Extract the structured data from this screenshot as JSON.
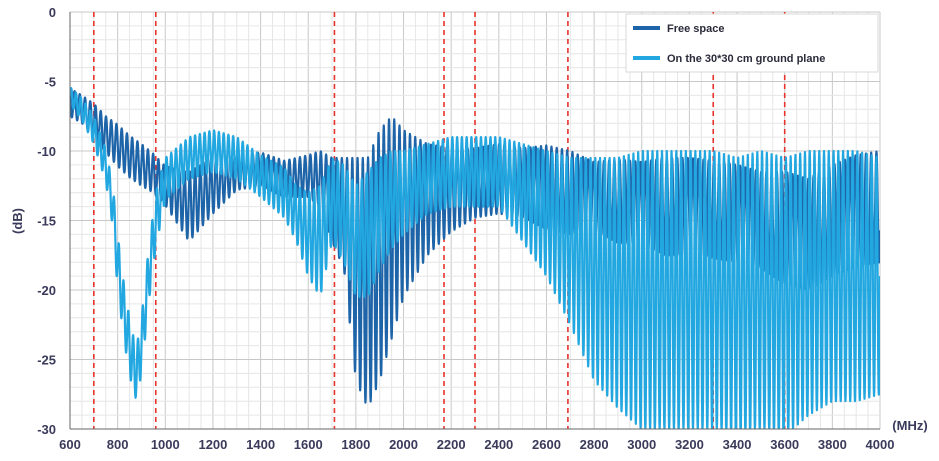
{
  "chart_data": {
    "type": "line",
    "xlabel": "(MHz)",
    "ylabel": "(dB)",
    "xlim": [
      600,
      4000
    ],
    "ylim": [
      -30,
      0
    ],
    "x_ticks": [
      "600",
      "800",
      "1000",
      "1200",
      "1400",
      "1600",
      "1800",
      "2000",
      "2200",
      "2400",
      "2600",
      "2800",
      "3000",
      "3200",
      "3400",
      "3600",
      "3800",
      "4000"
    ],
    "y_ticks": [
      "0",
      "-5",
      "-10",
      "-15",
      "-20",
      "-25",
      "-30"
    ],
    "grid": true,
    "legend_position": "top-right",
    "band_markers_mhz": [
      700,
      960,
      1710,
      2170,
      2300,
      2690,
      3300,
      3600
    ],
    "band_marker_color": "#e8322c",
    "series": [
      {
        "name": "Free space",
        "color": "#1e64a8",
        "x": [
          600,
          650,
          700,
          750,
          800,
          850,
          900,
          950,
          1000,
          1100,
          1200,
          1300,
          1400,
          1500,
          1600,
          1650,
          1700,
          1750,
          1800,
          1850,
          1900,
          1950,
          2000,
          2100,
          2200,
          2300,
          2400,
          2500,
          2600,
          2700,
          2800,
          2900,
          3000,
          3100,
          3200,
          3300,
          3400,
          3500,
          3600,
          3700,
          3800,
          3900,
          4000
        ],
        "y": [
          -6.5,
          -7.0,
          -7.8,
          -8.8,
          -9.6,
          -10.4,
          -11.0,
          -11.6,
          -12.5,
          -14.0,
          -12.5,
          -11.6,
          -11.3,
          -12.0,
          -11.8,
          -12.0,
          -13.5,
          -14.5,
          -18.5,
          -19.5,
          -17.5,
          -15.5,
          -14.5,
          -13.5,
          -12.8,
          -12.3,
          -12.0,
          -12.3,
          -12.6,
          -13.0,
          -13.3,
          -13.6,
          -13.8,
          -14.0,
          -14.0,
          -14.2,
          -14.5,
          -15.0,
          -15.5,
          -16.0,
          -15.0,
          -14.3,
          -14.0
        ],
        "ripple_db": [
          1.0,
          1.0,
          1.2,
          1.3,
          1.5,
          1.5,
          1.5,
          1.4,
          1.4,
          2.5,
          2.0,
          1.2,
          1.2,
          1.3,
          1.5,
          2.0,
          3.0,
          4.0,
          8.0,
          9.0,
          9.0,
          8.0,
          6.0,
          4.0,
          3.0,
          2.5,
          2.5,
          2.5,
          3.0,
          3.0,
          2.5,
          3.0,
          3.0,
          3.5,
          3.5,
          3.5,
          3.5,
          3.5,
          4.0,
          4.0,
          4.0,
          4.0,
          4.0
        ]
      },
      {
        "name": "On the 30*30 cm ground plane",
        "color": "#22a7e0",
        "x": [
          600,
          650,
          700,
          750,
          780,
          800,
          830,
          860,
          880,
          900,
          930,
          960,
          1000,
          1100,
          1200,
          1300,
          1400,
          1500,
          1550,
          1600,
          1650,
          1700,
          1750,
          1800,
          1850,
          1900,
          1950,
          2000,
          2100,
          2200,
          2300,
          2400,
          2500,
          2600,
          2700,
          2800,
          2900,
          3000,
          3100,
          3200,
          3300,
          3400,
          3500,
          3600,
          3700,
          3800,
          3900,
          4000
        ],
        "y": [
          -6.0,
          -7.0,
          -8.5,
          -11.0,
          -14.0,
          -18.0,
          -22.0,
          -25.0,
          -26.0,
          -24.0,
          -19.0,
          -15.0,
          -12.0,
          -10.5,
          -10.0,
          -10.5,
          -11.8,
          -13.0,
          -14.5,
          -16.0,
          -16.5,
          -13.5,
          -14.5,
          -16.5,
          -16.0,
          -14.5,
          -13.5,
          -13.0,
          -12.0,
          -11.5,
          -11.5,
          -11.5,
          -13.0,
          -14.5,
          -16.5,
          -18.5,
          -19.5,
          -20.0,
          -20.0,
          -20.0,
          -20.0,
          -20.5,
          -20.0,
          -20.5,
          -19.5,
          -19.0,
          -19.0,
          -19.0
        ],
        "ripple_db": [
          0.6,
          0.8,
          1.0,
          1.2,
          1.5,
          2.0,
          2.0,
          2.0,
          2.0,
          2.0,
          2.0,
          2.0,
          1.5,
          1.5,
          1.5,
          1.5,
          1.5,
          1.8,
          2.0,
          3.0,
          4.0,
          3.0,
          3.5,
          4.0,
          4.5,
          4.0,
          3.5,
          3.0,
          2.5,
          2.5,
          2.5,
          2.5,
          3.5,
          4.5,
          6.0,
          8.0,
          9.0,
          10.0,
          10.0,
          10.0,
          10.0,
          10.0,
          10.0,
          10.0,
          9.5,
          9.0,
          9.0,
          8.5
        ]
      }
    ]
  }
}
